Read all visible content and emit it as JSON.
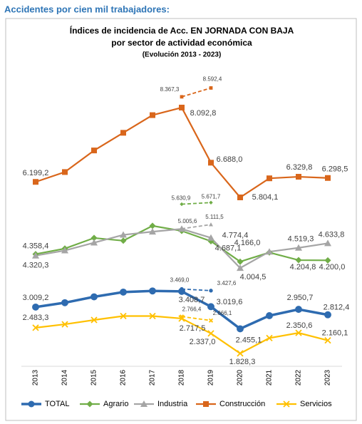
{
  "header": {
    "title": "Accidentes por cien mil trabajadores:"
  },
  "chart_data": {
    "type": "line",
    "title": "Índices de incidencia de Acc. EN JORNADA CON BAJA",
    "subtitle": "por sector de actividad económica",
    "subtitle2": "(Evolución 2013 - 2023)",
    "categories": [
      "2013",
      "2014",
      "2015",
      "2016",
      "2017",
      "2018",
      "2019",
      "2020",
      "2021",
      "2022",
      "2023"
    ],
    "ylim": [
      1500,
      9000
    ],
    "legend": "bottom",
    "series": [
      {
        "name": "TOTAL",
        "color": "#2e6bb0",
        "marker": "circle",
        "values": [
          3009.2,
          3120,
          3270,
          3390,
          3420,
          3408.7,
          3019.6,
          2455.1,
          2790,
          2950.7,
          2812.4
        ],
        "value_labels": [
          "3.009,2",
          null,
          null,
          null,
          null,
          "3.408,7",
          "3.019,6",
          "2.455,1",
          null,
          "2.950,7",
          "2.812,4"
        ]
      },
      {
        "name": "Agrario",
        "color": "#70ad47",
        "marker": "diamond",
        "values": [
          4358.4,
          4500,
          4770,
          4700,
          5080,
          4950,
          4687.1,
          4166.0,
          4400,
          4204.8,
          4200.0
        ],
        "value_labels": [
          "4.358,4",
          null,
          null,
          null,
          null,
          null,
          "4.687,1",
          "4.166,0",
          null,
          "4.204,8",
          "4.200,0"
        ]
      },
      {
        "name": "Industria",
        "color": "#a5a5a5",
        "marker": "triangle",
        "values": [
          4320.3,
          4450,
          4650,
          4850,
          4930,
          5000,
          4774.4,
          4004.5,
          4420,
          4519.3,
          4633.8
        ],
        "value_labels": [
          "4.320,3",
          null,
          null,
          null,
          null,
          null,
          "4.774,4",
          "4.004,5",
          null,
          "4.519,3",
          "4.633,8"
        ]
      },
      {
        "name": "Construcción",
        "color": "#d9661b",
        "marker": "square",
        "values": [
          6199.2,
          6450,
          7000,
          7450,
          7900,
          8092.8,
          6688.0,
          5804.1,
          6290,
          6329.8,
          6298.5
        ],
        "value_labels": [
          "6.199,2",
          null,
          null,
          null,
          null,
          "8.092,8",
          "6.688,0",
          "5.804,1",
          null,
          "6.329,8",
          "6.298,5"
        ]
      },
      {
        "name": "Servicios",
        "color": "#ffc000",
        "marker": "x",
        "values": [
          2483.3,
          2570,
          2680,
          2780,
          2780,
          2717.5,
          2337.0,
          1828.3,
          2220,
          2350.6,
          2160.1
        ],
        "value_labels": [
          "2.483,3",
          null,
          null,
          null,
          null,
          "2.717,5",
          "2.337,0",
          "1.828,3",
          null,
          "2.350,6",
          "2.160,1"
        ]
      }
    ],
    "dashed_series": [
      {
        "color": "#2e6bb0",
        "values": [
          null,
          null,
          null,
          null,
          null,
          3469.0,
          3427.6,
          null,
          null,
          null,
          null
        ],
        "value_labels": [
          null,
          null,
          null,
          null,
          null,
          "3.469,0",
          "3.427,6",
          null,
          null,
          null,
          null
        ]
      },
      {
        "color": "#70ad47",
        "values": [
          null,
          null,
          null,
          null,
          null,
          5630.9,
          5671.7,
          null,
          null,
          null,
          null
        ],
        "value_labels": [
          null,
          null,
          null,
          null,
          null,
          "5.630,9",
          "5.671,7",
          null,
          null,
          null,
          null
        ]
      },
      {
        "color": "#a5a5a5",
        "values": [
          null,
          null,
          null,
          null,
          null,
          5005.6,
          5111.5,
          null,
          null,
          null,
          null
        ],
        "value_labels": [
          null,
          null,
          null,
          null,
          null,
          "5.005,6",
          "5.111,5",
          null,
          null,
          null,
          null
        ]
      },
      {
        "color": "#d9661b",
        "values": [
          null,
          null,
          null,
          null,
          null,
          8367.3,
          8592.4,
          null,
          null,
          null,
          null
        ],
        "value_labels": [
          null,
          null,
          null,
          null,
          null,
          "8.367,3",
          "8.592,4",
          null,
          null,
          null,
          null
        ]
      },
      {
        "color": "#ffc000",
        "values": [
          null,
          null,
          null,
          null,
          null,
          2766.4,
          2666.1,
          null,
          null,
          null,
          null
        ],
        "value_labels": [
          null,
          null,
          null,
          null,
          null,
          "2.766,4",
          "2.666,1",
          null,
          null,
          null,
          null
        ]
      }
    ]
  }
}
